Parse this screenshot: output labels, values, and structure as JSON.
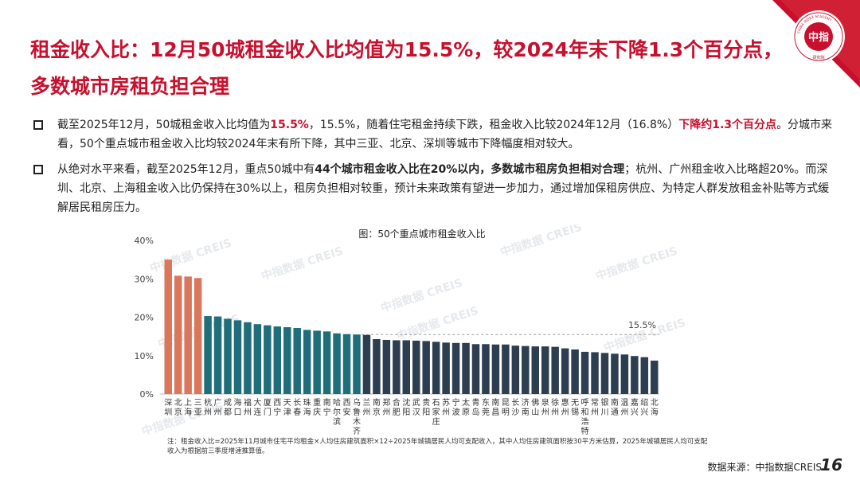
{
  "header": {
    "title_line1": "租金收入比：12月50城租金收入比均值为15.5%，较2024年末下降1.3个百分点，",
    "title_line2": "多数城市房租负担合理",
    "logo_text": "中指",
    "logo_ring": "CHINA INDEX ACADEMY",
    "logo_sub": "研究院"
  },
  "bullets": [
    {
      "p1": "截至2025年12月，50城租金收入比均值为",
      "p2": "15.5%",
      "p3": "，15.5%，随着住宅租金持续下跌，租金收入比较2024年12月（16.8%）",
      "p4": "下降约1.3个百分点",
      "p5": "。分城市来看，50个重点城市租金收入比均较2024年末有所下降，其中三亚、北京、深圳等城市下降幅度相对较大。"
    },
    {
      "p1": "从绝对水平来看，截至2025年12月，重点50城中有",
      "p2": "44个城市租金收入比在20%以内，多数城市租房负担相对合理",
      "p3": "；杭州、广州租金收入比略超20%。而深圳、北京、上海租金收入比仍保持在30%以上，租房负担相对较重，预计未来政策有望进一步加力，通过增加保租房供应、为特定人群发放租金补贴等方式缓解居民租房压力。"
    }
  ],
  "chart_data": {
    "type": "bar",
    "title": "图：50个重点城市租金收入比",
    "categories": [
      "深圳",
      "北京",
      "上海",
      "三亚",
      "杭州",
      "广州",
      "成都",
      "海口",
      "福州",
      "大连",
      "厦门",
      "西宁",
      "天津",
      "长春",
      "珠海",
      "重庆",
      "南宁",
      "哈尔滨",
      "西安",
      "乌鲁木齐",
      "兰州",
      "南京",
      "郑州",
      "合肥",
      "沈阳",
      "武汉",
      "贵阳",
      "石家庄",
      "苏州",
      "宁波",
      "太原",
      "青岛",
      "东莞",
      "南昌",
      "昆明",
      "长沙",
      "济南",
      "佛山",
      "泉州",
      "徐州",
      "惠州",
      "无锡",
      "呼和浩特",
      "常州",
      "银川",
      "南通",
      "温州",
      "嘉兴",
      "绍兴",
      "北海"
    ],
    "values": [
      35.0,
      30.8,
      30.6,
      30.2,
      20.3,
      20.2,
      19.6,
      19.2,
      18.7,
      18.2,
      17.9,
      17.6,
      17.4,
      17.2,
      16.7,
      16.5,
      16.3,
      15.8,
      15.6,
      15.5,
      15.4,
      14.3,
      14.1,
      14.0,
      14.0,
      13.9,
      13.8,
      13.6,
      13.4,
      13.3,
      13.3,
      13.0,
      13.0,
      12.9,
      12.9,
      12.6,
      12.5,
      12.4,
      12.4,
      12.3,
      11.9,
      11.6,
      11.0,
      10.9,
      10.7,
      10.5,
      10.3,
      9.9,
      9.6,
      8.7
    ],
    "ylim": [
      0,
      40
    ],
    "yticks": [
      "0%",
      "10%",
      "20%",
      "30%",
      "40%"
    ],
    "average": 15.5,
    "average_label": "15.5%",
    "colors": {
      "high": "#d9765b",
      "mid": "#1f6e7a",
      "low": "#2c3e50"
    },
    "watermark": "中指数据 CREIS"
  },
  "note": "注：租金收入比=2025年11月城市住宅平均租金×人均住房建筑面积×12÷2025年城镇居民人均可支配收入，其中人均住房建筑面积按30平方米估算，2025年城镇居民人均可支配收入为根据前三季度增速推算值。",
  "source": "数据来源：中指数据CREIS",
  "page_number": "16"
}
